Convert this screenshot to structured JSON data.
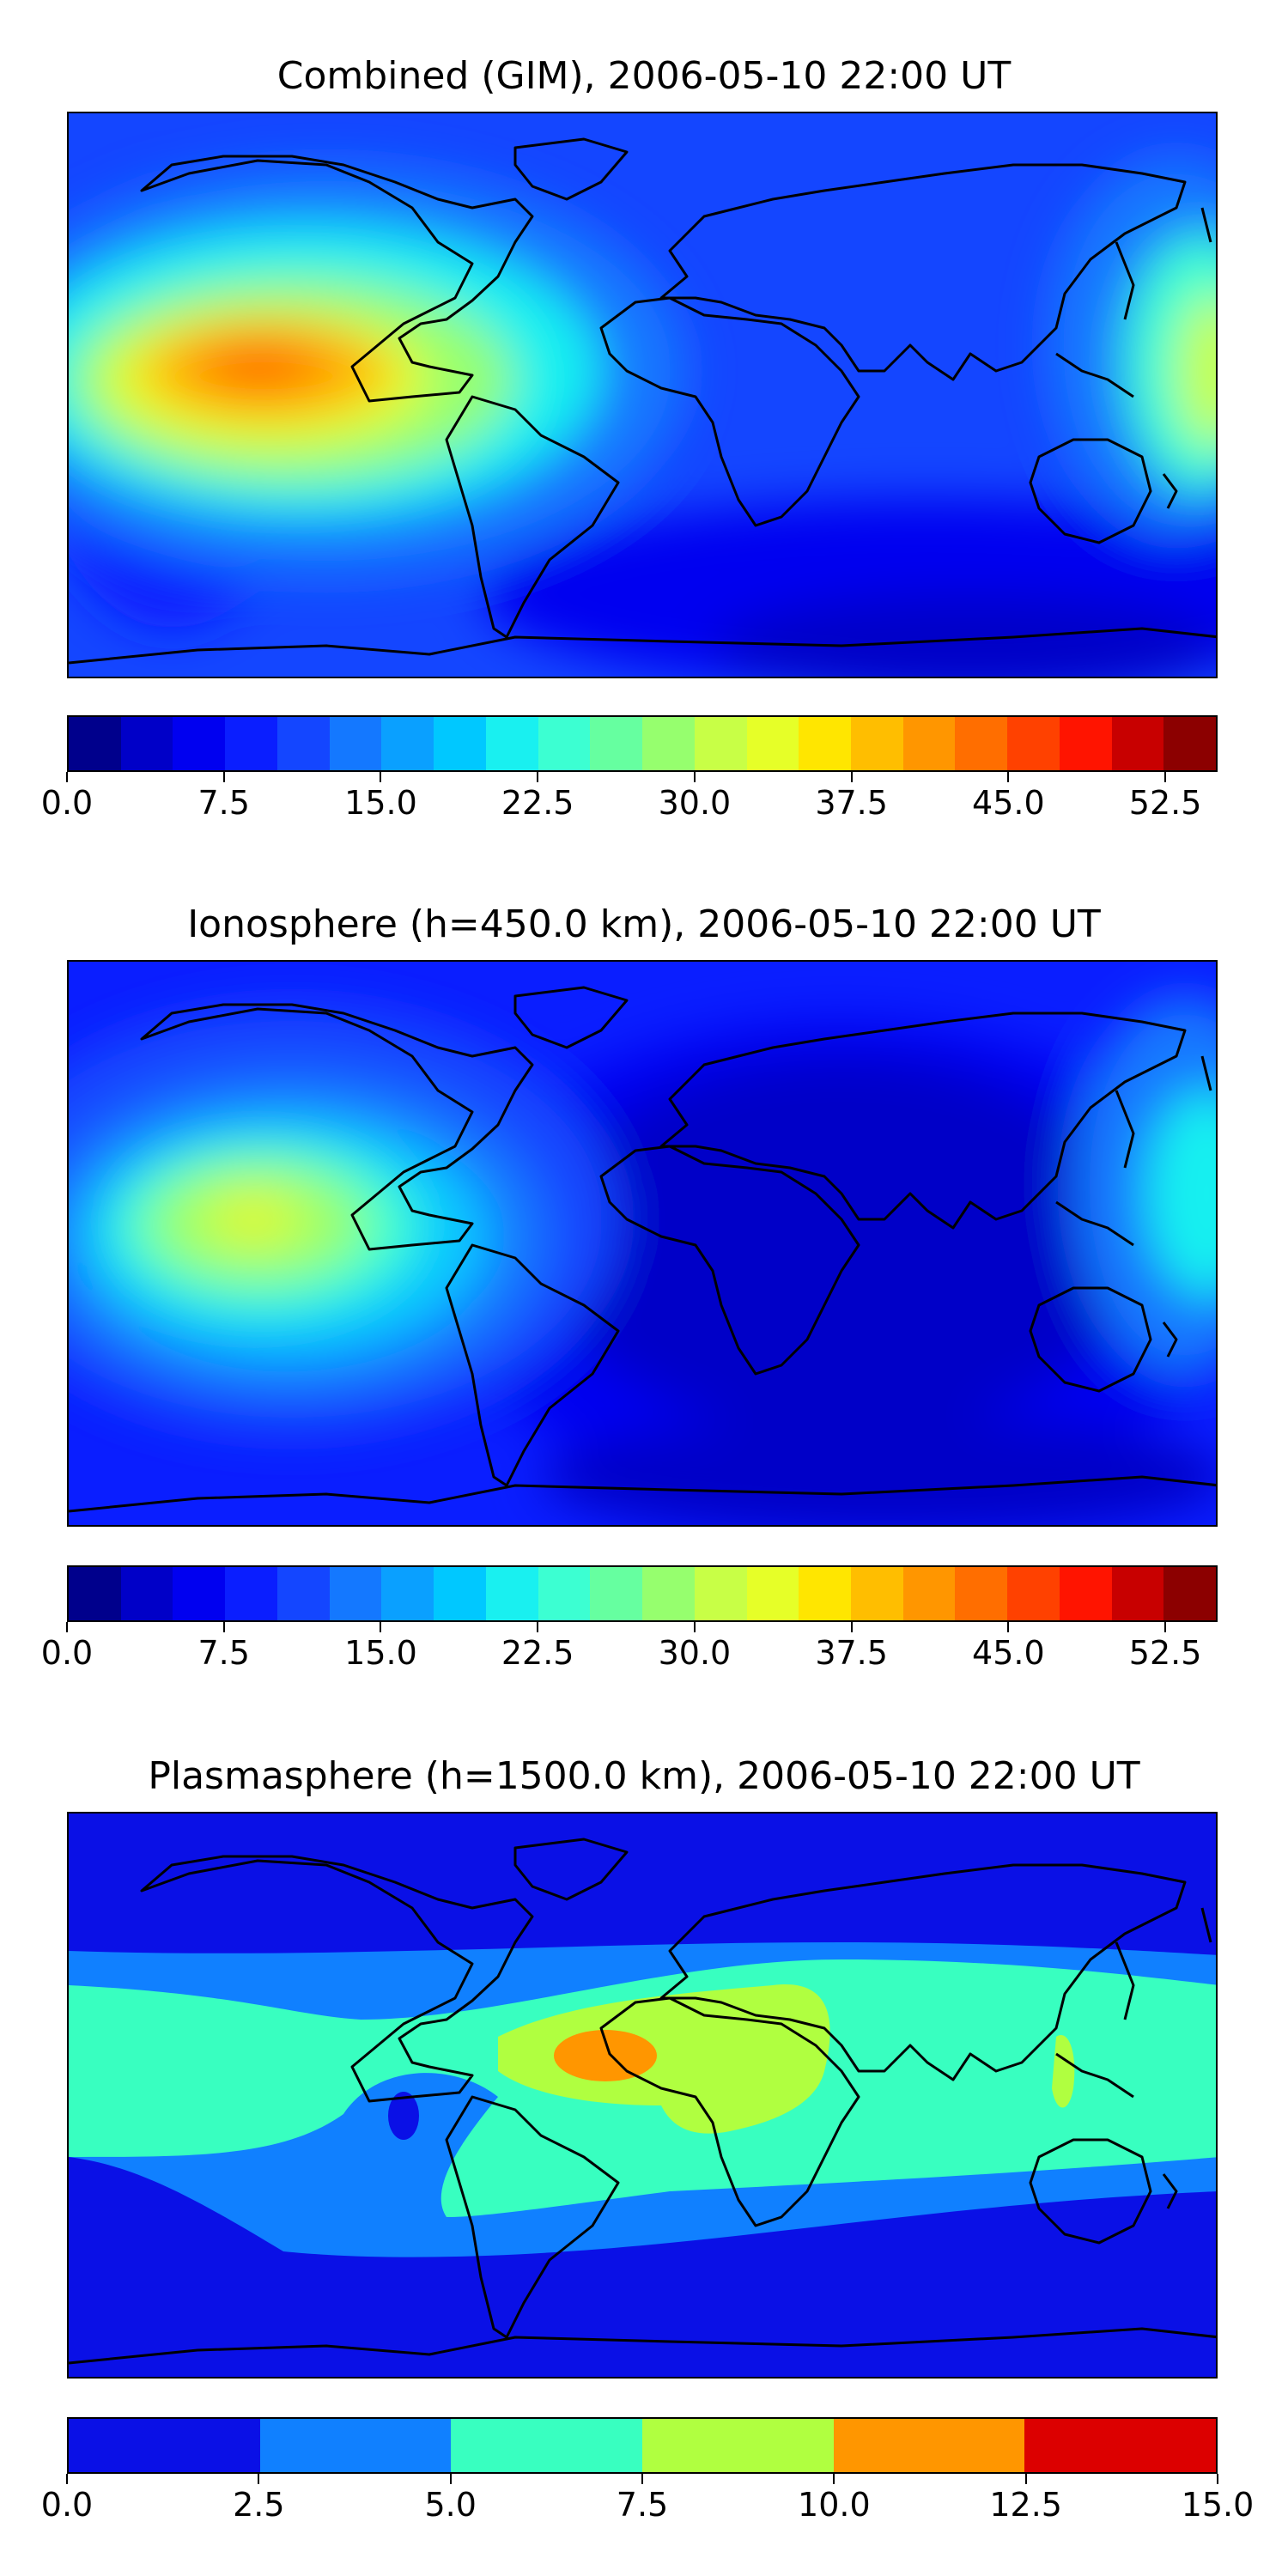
{
  "panels": [
    {
      "title": "Combined (GIM), 2006-05-10 22:00 UT",
      "colorbar": {
        "min": 0.0,
        "max": 55.0,
        "colors": [
          "#00008c",
          "#0000c8",
          "#0000f0",
          "#0a1eff",
          "#1446ff",
          "#1478ff",
          "#0aa0ff",
          "#00c8ff",
          "#19f0f0",
          "#3cffd2",
          "#66ffa0",
          "#96ff6e",
          "#c8ff46",
          "#e6ff28",
          "#ffe600",
          "#ffbe00",
          "#ff9600",
          "#ff6e00",
          "#ff4100",
          "#ff1400",
          "#c80000",
          "#8c0000"
        ],
        "ticks": [
          "0.0",
          "7.5",
          "15.0",
          "22.5",
          "30.0",
          "37.5",
          "45.0",
          "52.5"
        ]
      }
    },
    {
      "title": "Ionosphere  (h=450.0 km), 2006-05-10 22:00 UT",
      "colorbar": {
        "min": 0.0,
        "max": 55.0,
        "colors": [
          "#00008c",
          "#0000c8",
          "#0000f0",
          "#0a1eff",
          "#1446ff",
          "#1478ff",
          "#0aa0ff",
          "#00c8ff",
          "#19f0f0",
          "#3cffd2",
          "#66ffa0",
          "#96ff6e",
          "#c8ff46",
          "#e6ff28",
          "#ffe600",
          "#ffbe00",
          "#ff9600",
          "#ff6e00",
          "#ff4100",
          "#ff1400",
          "#c80000",
          "#8c0000"
        ],
        "ticks": [
          "0.0",
          "7.5",
          "15.0",
          "22.5",
          "30.0",
          "37.5",
          "45.0",
          "52.5"
        ]
      }
    },
    {
      "title": "Plasmasphere (h=1500.0 km), 2006-05-10 22:00 UT",
      "colorbar": {
        "min": 0.0,
        "max": 15.0,
        "colors": [
          "#0a10e6",
          "#1080ff",
          "#38ffc0",
          "#b0ff40",
          "#ff9600",
          "#dc0000"
        ],
        "ticks": [
          "0.0",
          "2.5",
          "5.0",
          "7.5",
          "10.0",
          "12.5",
          "15.0"
        ]
      }
    }
  ]
}
